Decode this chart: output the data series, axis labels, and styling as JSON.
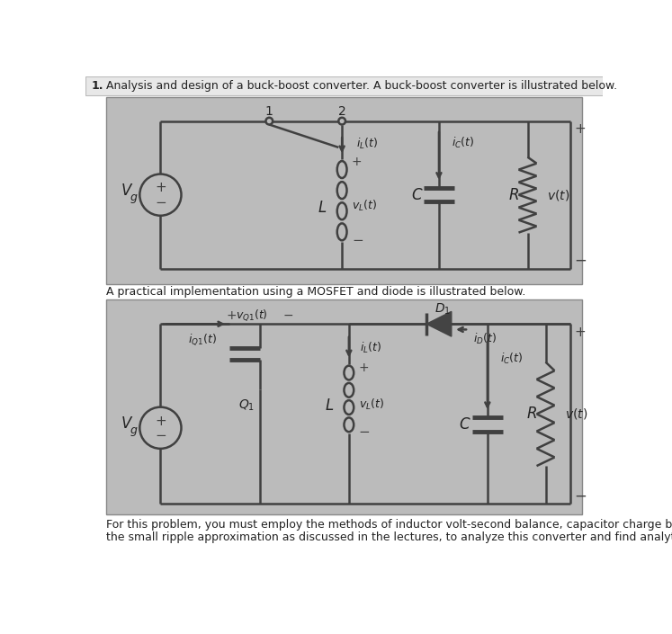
{
  "bg_color": "#c8c8c8",
  "white": "#ffffff",
  "circuit_bg": "#b8b8b8",
  "wire_color": "#404040",
  "title_bold": "1.",
  "title_rest": "  Analysis and design of a buck-boost converter. A buck-boost converter is illustrated below.",
  "middle_text": "A practical implementation using a MOSFET and diode is illustrated below.",
  "bottom_text1": "For this problem, you must employ the methods of inductor volt-second balance, capacitor charge balance, and",
  "bottom_text2": "the small ripple approximation as discussed in the lectures, to analyze this converter and find analytical"
}
